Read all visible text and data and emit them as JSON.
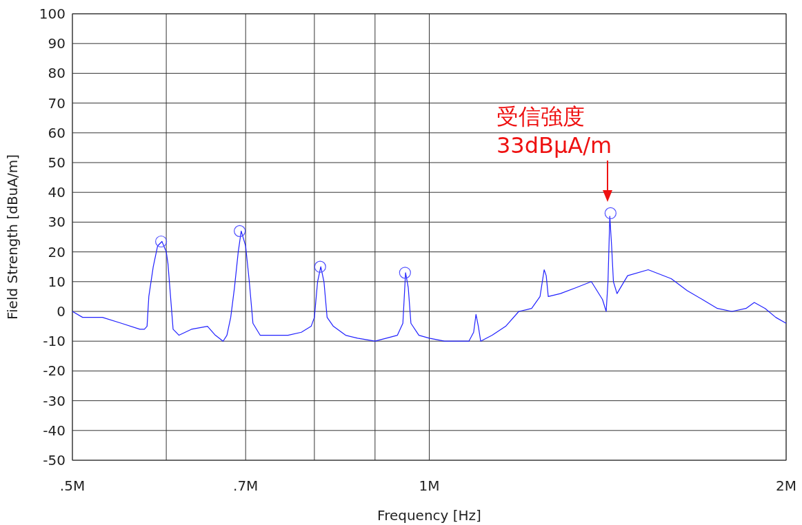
{
  "chart_data": {
    "type": "line",
    "xlabel": "Frequency [Hz]",
    "ylabel": "Field Strength [dBuA/m]",
    "log": "x",
    "grid": true,
    "xlim": [
      500000,
      2000000
    ],
    "ylim": [
      -50,
      100
    ],
    "xticks": [
      {
        "value": 500000,
        "label": ".5M"
      },
      {
        "value": 600000,
        "label": null
      },
      {
        "value": 700000,
        "label": ".7M"
      },
      {
        "value": 800000,
        "label": null
      },
      {
        "value": 900000,
        "label": null
      },
      {
        "value": 1000000,
        "label": "1M"
      },
      {
        "value": 2000000,
        "label": "2M"
      }
    ],
    "yticks": [
      -50,
      -40,
      -30,
      -20,
      -10,
      0,
      10,
      20,
      30,
      40,
      50,
      60,
      70,
      80,
      90,
      100
    ],
    "annotations": [
      "受信強度",
      "33dBμA/m"
    ],
    "series": [
      {
        "color": "#2020ff",
        "marker": "none",
        "line_style": "solid",
        "x": [
          500000,
          510000,
          530000,
          550000,
          570000,
          575000,
          578000,
          580000,
          585000,
          590000,
          595000,
          600000,
          602000,
          608000,
          615000,
          630000,
          650000,
          660000,
          670000,
          675000,
          680000,
          685000,
          690000,
          694000,
          700000,
          705000,
          710000,
          720000,
          740000,
          760000,
          780000,
          795000,
          800000,
          805000,
          810000,
          815000,
          820000,
          830000,
          850000,
          870000,
          900000,
          920000,
          940000,
          950000,
          955000,
          960000,
          965000,
          980000,
          1000000,
          1030000,
          1060000,
          1080000,
          1090000,
          1095000,
          1100000,
          1105000,
          1130000,
          1160000,
          1190000,
          1220000,
          1240000,
          1250000,
          1255000,
          1260000,
          1290000,
          1330000,
          1370000,
          1400000,
          1410000,
          1415000,
          1420000,
          1425000,
          1430000,
          1440000,
          1470000,
          1530000,
          1600000,
          1650000,
          1700000,
          1750000,
          1800000,
          1850000,
          1880000,
          1920000,
          1960000,
          2000000
        ],
        "values": [
          0,
          -2,
          -2,
          -4,
          -6,
          -6,
          -5,
          5,
          15,
          22,
          23.5,
          20,
          16,
          -6,
          -8,
          -6,
          -5,
          -8,
          -10,
          -8,
          -2,
          8,
          20,
          27,
          22,
          10,
          -4,
          -8,
          -8,
          -8,
          -7,
          -5,
          -2,
          10,
          15,
          10,
          -2,
          -5,
          -8,
          -9,
          -10,
          -9,
          -8,
          -4,
          13,
          8,
          -4,
          -8,
          -9,
          -10,
          -10,
          -10,
          -7,
          -1,
          -5,
          -10,
          -8,
          -5,
          0,
          1,
          5,
          14,
          12,
          5,
          6,
          8,
          10,
          4,
          0,
          10,
          32,
          22,
          10,
          6,
          12,
          14,
          11,
          7,
          4,
          1,
          0,
          1,
          3,
          1,
          -2,
          -4
        ]
      },
      {
        "type": "scatter",
        "color": "#5050ff",
        "marker": "circle",
        "x": [
          594000,
          692000,
          809000,
          954000,
          1422000
        ],
        "values": [
          23.5,
          27,
          15,
          13,
          33
        ]
      }
    ]
  }
}
